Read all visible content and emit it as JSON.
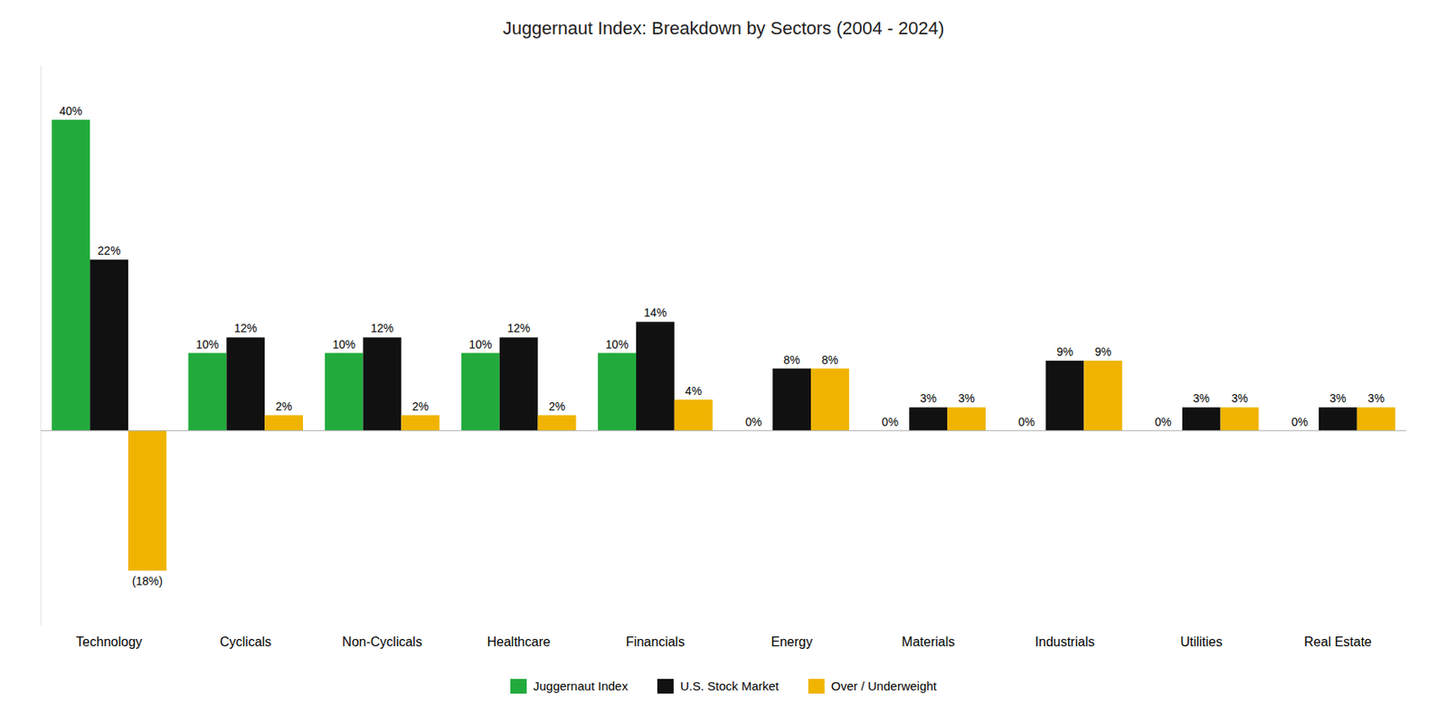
{
  "chart_data": {
    "type": "bar",
    "title": "Juggernaut Index: Breakdown by Sectors (2004 - 2024)",
    "categories": [
      "Technology",
      "Cyclicals",
      "Non-Cyclicals",
      "Healthcare",
      "Financials",
      "Energy",
      "Materials",
      "Industrials",
      "Utilities",
      "Real Estate"
    ],
    "series": [
      {
        "name": "Juggernaut Index",
        "color": "#22ab3c",
        "values": [
          40,
          10,
          10,
          10,
          10,
          0,
          0,
          0,
          0,
          0
        ],
        "value_labels": [
          "40%",
          "10%",
          "10%",
          "10%",
          "10%",
          "0%",
          "0%",
          "0%",
          "0%",
          "0%"
        ]
      },
      {
        "name": "U.S. Stock Market",
        "color": "#111111",
        "values": [
          22,
          12,
          12,
          12,
          14,
          8,
          3,
          9,
          3,
          3
        ],
        "value_labels": [
          "22%",
          "12%",
          "12%",
          "12%",
          "14%",
          "8%",
          "3%",
          "9%",
          "3%",
          "3%"
        ]
      },
      {
        "name": "Over / Underweight",
        "color": "#f0b400",
        "values": [
          -18,
          2,
          2,
          2,
          4,
          8,
          3,
          9,
          3,
          3
        ],
        "value_labels": [
          "(18%)",
          "2%",
          "2%",
          "2%",
          "4%",
          "8%",
          "3%",
          "9%",
          "3%",
          "3%"
        ]
      }
    ],
    "ylim": [
      -25,
      47
    ],
    "yticks": [],
    "grid": false,
    "legend": "bottom",
    "data_labels": true,
    "tick_labels": "x"
  }
}
